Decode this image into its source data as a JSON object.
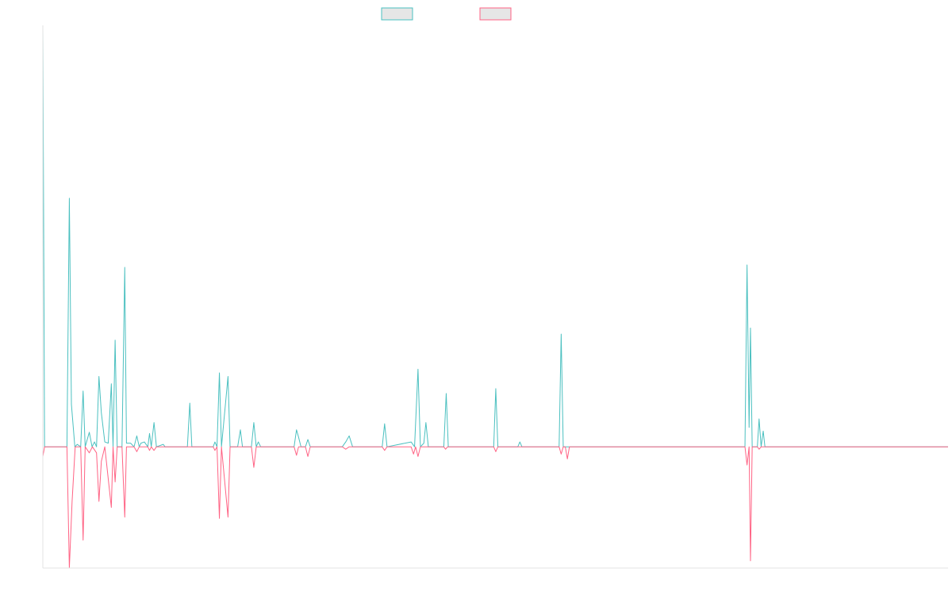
{
  "colors": {
    "series_a": "#4bc0c0",
    "series_b": "#ff6384",
    "legend_fill": "#e6e6e6",
    "axis": "#e3e3e3",
    "background": "#ffffff"
  },
  "chart_data": {
    "type": "line",
    "title": "",
    "xlabel": "",
    "ylabel": "",
    "grid": false,
    "legend": "top-center",
    "x_range": [
      0,
      263
    ],
    "ylim": [
      -1.0,
      3.45
    ],
    "series": [
      {
        "color": "#4bc0c0",
        "points": [
          [
            0,
            3.45
          ],
          [
            0.5,
            0
          ],
          [
            7,
            0
          ],
          [
            7.7,
            2.05
          ],
          [
            8.3,
            0.35
          ],
          [
            9.3,
            0
          ],
          [
            10,
            0.02
          ],
          [
            11,
            0
          ],
          [
            11.7,
            0.46
          ],
          [
            12.3,
            0
          ],
          [
            13.5,
            0.12
          ],
          [
            14.3,
            0
          ],
          [
            15,
            0.04
          ],
          [
            15.6,
            0
          ],
          [
            16.3,
            0.58
          ],
          [
            17,
            0.28
          ],
          [
            18,
            0.04
          ],
          [
            19,
            0.03
          ],
          [
            19.9,
            0.52
          ],
          [
            20.4,
            0
          ],
          [
            21,
            0.88
          ],
          [
            21.6,
            0
          ],
          [
            23,
            0
          ],
          [
            23.8,
            1.48
          ],
          [
            24.3,
            0.03
          ],
          [
            25.5,
            0.03
          ],
          [
            26.5,
            0
          ],
          [
            27.3,
            0.09
          ],
          [
            28,
            0
          ],
          [
            28.5,
            0.03
          ],
          [
            29.5,
            0.04
          ],
          [
            30.5,
            0
          ],
          [
            31,
            0.11
          ],
          [
            31.5,
            0
          ],
          [
            32.3,
            0.2
          ],
          [
            33,
            0
          ],
          [
            35,
            0.02
          ],
          [
            35.5,
            0
          ],
          [
            42,
            0
          ],
          [
            42.7,
            0.36
          ],
          [
            43.3,
            0
          ],
          [
            49.5,
            0
          ],
          [
            50,
            0.04
          ],
          [
            50.6,
            0
          ],
          [
            51.3,
            0.61
          ],
          [
            51.9,
            0
          ],
          [
            53.8,
            0.58
          ],
          [
            54.4,
            0
          ],
          [
            56.6,
            0
          ],
          [
            57.4,
            0.14
          ],
          [
            58,
            0
          ],
          [
            60.6,
            0
          ],
          [
            61.3,
            0.2
          ],
          [
            62,
            0
          ],
          [
            62.6,
            0.04
          ],
          [
            63.3,
            0
          ],
          [
            73,
            0
          ],
          [
            73.7,
            0.14
          ],
          [
            74.3,
            0.08
          ],
          [
            75,
            0
          ],
          [
            76.3,
            0
          ],
          [
            77,
            0.06
          ],
          [
            77.7,
            0
          ],
          [
            87,
            0
          ],
          [
            88,
            0.04
          ],
          [
            89,
            0.09
          ],
          [
            90,
            0
          ],
          [
            98.6,
            0
          ],
          [
            99.3,
            0.19
          ],
          [
            100,
            0
          ],
          [
            107,
            0.04
          ],
          [
            108,
            0
          ],
          [
            109,
            0.64
          ],
          [
            109.7,
            0
          ],
          [
            110.7,
            0.03
          ],
          [
            111.3,
            0.2
          ],
          [
            112,
            0
          ],
          [
            116.5,
            0
          ],
          [
            117.2,
            0.44
          ],
          [
            117.8,
            0
          ],
          [
            131,
            0
          ],
          [
            131.6,
            0.48
          ],
          [
            132.2,
            0
          ],
          [
            138,
            0
          ],
          [
            138.6,
            0.04
          ],
          [
            139.2,
            0
          ],
          [
            150,
            0
          ],
          [
            150.6,
            0.93
          ],
          [
            151.2,
            0
          ],
          [
            204,
            0
          ],
          [
            204.6,
            1.5
          ],
          [
            205.2,
            0.16
          ],
          [
            205.6,
            0.98
          ],
          [
            206.1,
            0
          ],
          [
            207.6,
            0
          ],
          [
            208.1,
            0.23
          ],
          [
            208.7,
            0
          ],
          [
            209.3,
            0.13
          ],
          [
            209.8,
            0
          ],
          [
            263,
            0
          ]
        ]
      },
      {
        "color": "#ff6384",
        "points": [
          [
            0,
            -0.08
          ],
          [
            0.5,
            0
          ],
          [
            7,
            0
          ],
          [
            7.7,
            -1.0
          ],
          [
            8.5,
            -0.45
          ],
          [
            9.4,
            0
          ],
          [
            11,
            0
          ],
          [
            11.7,
            -0.77
          ],
          [
            12.3,
            0
          ],
          [
            13.5,
            -0.05
          ],
          [
            14.4,
            0
          ],
          [
            15.6,
            -0.05
          ],
          [
            16.3,
            -0.45
          ],
          [
            17,
            -0.12
          ],
          [
            18,
            0
          ],
          [
            19.9,
            -0.5
          ],
          [
            20.4,
            0
          ],
          [
            21,
            -0.29
          ],
          [
            21.6,
            0
          ],
          [
            23,
            0
          ],
          [
            23.8,
            -0.58
          ],
          [
            24.3,
            0
          ],
          [
            26.5,
            0
          ],
          [
            27.3,
            -0.04
          ],
          [
            28,
            0
          ],
          [
            30.5,
            0
          ],
          [
            31,
            -0.03
          ],
          [
            31.5,
            0
          ],
          [
            32.3,
            -0.03
          ],
          [
            33,
            0
          ],
          [
            49.5,
            0
          ],
          [
            50,
            -0.03
          ],
          [
            50.6,
            0
          ],
          [
            51.3,
            -0.59
          ],
          [
            51.9,
            0
          ],
          [
            53.8,
            -0.58
          ],
          [
            54.4,
            0
          ],
          [
            60.6,
            0
          ],
          [
            61.3,
            -0.17
          ],
          [
            62,
            0
          ],
          [
            73,
            0
          ],
          [
            73.7,
            -0.07
          ],
          [
            74.3,
            0
          ],
          [
            76.3,
            0
          ],
          [
            77,
            -0.08
          ],
          [
            77.7,
            0
          ],
          [
            87,
            0
          ],
          [
            88,
            -0.02
          ],
          [
            89,
            0
          ],
          [
            98.6,
            0
          ],
          [
            99.3,
            -0.03
          ],
          [
            100,
            0
          ],
          [
            107,
            0
          ],
          [
            107.7,
            -0.06
          ],
          [
            108.3,
            0
          ],
          [
            109,
            -0.08
          ],
          [
            109.7,
            0
          ],
          [
            116.5,
            0
          ],
          [
            117,
            -0.02
          ],
          [
            117.6,
            0
          ],
          [
            131,
            0
          ],
          [
            131.6,
            -0.04
          ],
          [
            132.2,
            0
          ],
          [
            150,
            0
          ],
          [
            150.6,
            -0.06
          ],
          [
            151.2,
            0
          ],
          [
            151.8,
            0
          ],
          [
            152.4,
            -0.1
          ],
          [
            153,
            0
          ],
          [
            204,
            0
          ],
          [
            204.6,
            -0.15
          ],
          [
            205.2,
            0
          ],
          [
            205.6,
            -0.94
          ],
          [
            206.1,
            0
          ],
          [
            207.6,
            0
          ],
          [
            208.1,
            -0.02
          ],
          [
            208.7,
            0
          ],
          [
            263,
            0
          ]
        ]
      }
    ]
  }
}
